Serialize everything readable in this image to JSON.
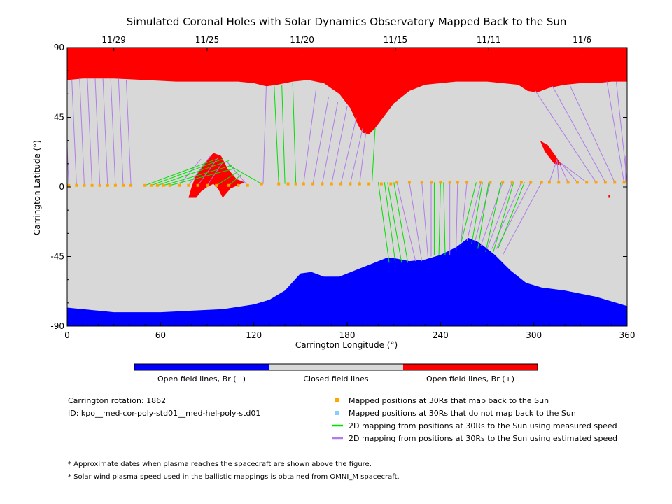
{
  "chart_data": {
    "type": "map",
    "title": "Simulated Coronal Holes with Solar Dynamics Observatory Mapped Back to the Sun",
    "xlabel": "Carrington Longitude (°)",
    "ylabel": "Carrington Latitude (°)",
    "xlim": [
      0,
      360
    ],
    "ylim": [
      -90,
      90
    ],
    "x_ticks": [
      "0",
      "60",
      "120",
      "180",
      "240",
      "300",
      "360"
    ],
    "y_ticks": [
      "90",
      "45",
      "0",
      "-45",
      "-90"
    ],
    "top_axis_dates": [
      {
        "label": "11/29",
        "lon": 30
      },
      {
        "label": "11/25",
        "lon": 90
      },
      {
        "label": "11/20",
        "lon": 151
      },
      {
        "label": "11/15",
        "lon": 211
      },
      {
        "label": "11/11",
        "lon": 271
      },
      {
        "label": "11/6",
        "lon": 331
      }
    ],
    "colors": {
      "open_negative": "#0000ff",
      "closed": "#d8d8d8",
      "open_positive": "#ff0000",
      "mapped_point": "#ffa500",
      "unmapped_point": "#87cefa",
      "measured_speed_line": "#00e000",
      "estimated_speed_line": "#b07de8"
    },
    "north_boundary": [
      [
        0,
        69
      ],
      [
        10,
        70
      ],
      [
        20,
        70
      ],
      [
        30,
        70
      ],
      [
        40,
        69.5
      ],
      [
        50,
        69
      ],
      [
        60,
        68.5
      ],
      [
        70,
        68
      ],
      [
        80,
        68
      ],
      [
        90,
        68
      ],
      [
        100,
        68
      ],
      [
        110,
        68
      ],
      [
        120,
        67
      ],
      [
        128,
        65
      ],
      [
        135,
        66
      ],
      [
        145,
        68
      ],
      [
        155,
        69
      ],
      [
        165,
        67
      ],
      [
        175,
        60
      ],
      [
        182,
        51
      ],
      [
        187,
        40
      ],
      [
        190,
        35
      ],
      [
        194,
        34
      ],
      [
        198,
        38
      ],
      [
        204,
        46
      ],
      [
        210,
        54
      ],
      [
        220,
        62
      ],
      [
        230,
        66
      ],
      [
        240,
        67
      ],
      [
        250,
        68
      ],
      [
        260,
        68
      ],
      [
        270,
        68
      ],
      [
        280,
        67
      ],
      [
        290,
        66
      ],
      [
        296,
        62
      ],
      [
        302,
        61
      ],
      [
        310,
        64
      ],
      [
        320,
        66
      ],
      [
        330,
        67
      ],
      [
        340,
        67
      ],
      [
        350,
        68
      ],
      [
        360,
        68
      ]
    ],
    "south_boundary": [
      [
        0,
        -78
      ],
      [
        10,
        -79
      ],
      [
        20,
        -80
      ],
      [
        30,
        -81
      ],
      [
        40,
        -81
      ],
      [
        60,
        -81
      ],
      [
        80,
        -80
      ],
      [
        100,
        -79
      ],
      [
        120,
        -76
      ],
      [
        130,
        -73
      ],
      [
        140,
        -67
      ],
      [
        150,
        -56
      ],
      [
        157,
        -55
      ],
      [
        165,
        -58
      ],
      [
        175,
        -58
      ],
      [
        185,
        -54
      ],
      [
        195,
        -50
      ],
      [
        205,
        -46
      ],
      [
        210,
        -46
      ],
      [
        220,
        -48
      ],
      [
        230,
        -47
      ],
      [
        240,
        -44
      ],
      [
        250,
        -39
      ],
      [
        258,
        -33
      ],
      [
        265,
        -36
      ],
      [
        275,
        -44
      ],
      [
        285,
        -54
      ],
      [
        295,
        -62
      ],
      [
        305,
        -65
      ],
      [
        320,
        -67
      ],
      [
        340,
        -71
      ],
      [
        360,
        -77
      ]
    ],
    "positive_patches": [
      [
        [
          78,
          -7
        ],
        [
          80,
          0
        ],
        [
          83,
          8
        ],
        [
          88,
          15
        ],
        [
          94,
          22
        ],
        [
          99,
          20
        ],
        [
          103,
          12
        ],
        [
          109,
          5
        ],
        [
          114,
          3
        ],
        [
          105,
          -1
        ],
        [
          100,
          -7
        ],
        [
          97,
          -1
        ],
        [
          94,
          2
        ],
        [
          90,
          0
        ],
        [
          86,
          -3
        ],
        [
          83,
          -7
        ]
      ],
      [
        [
          304,
          30
        ],
        [
          307,
          23
        ],
        [
          313,
          15
        ],
        [
          318,
          14
        ],
        [
          314,
          20
        ],
        [
          309,
          27
        ]
      ],
      [
        [
          348,
          -5
        ],
        [
          349,
          -5
        ],
        [
          349,
          -7
        ],
        [
          348,
          -7
        ]
      ]
    ],
    "mapped_points": [
      [
        1,
        1
      ],
      [
        6,
        1
      ],
      [
        11,
        1
      ],
      [
        16,
        1
      ],
      [
        21,
        1
      ],
      [
        26,
        1
      ],
      [
        31,
        1
      ],
      [
        36,
        1
      ],
      [
        41,
        1
      ],
      [
        50,
        1
      ],
      [
        54,
        1
      ],
      [
        58,
        1
      ],
      [
        62,
        1
      ],
      [
        66,
        1
      ],
      [
        72,
        1
      ],
      [
        78,
        1
      ],
      [
        84,
        1
      ],
      [
        90,
        1
      ],
      [
        96,
        1
      ],
      [
        104,
        1
      ],
      [
        110,
        1
      ],
      [
        116,
        1
      ],
      [
        125,
        2
      ],
      [
        136,
        2
      ],
      [
        142,
        2
      ],
      [
        147,
        2
      ],
      [
        152,
        2
      ],
      [
        158,
        2
      ],
      [
        164,
        2
      ],
      [
        170,
        2
      ],
      [
        176,
        2
      ],
      [
        182,
        2
      ],
      [
        188,
        2
      ],
      [
        194,
        2
      ],
      [
        202,
        2
      ],
      [
        208,
        2
      ],
      [
        212,
        3
      ],
      [
        220,
        3
      ],
      [
        228,
        3
      ],
      [
        234,
        3
      ],
      [
        240,
        3
      ],
      [
        246,
        3
      ],
      [
        251,
        3
      ],
      [
        257,
        3
      ],
      [
        266,
        3
      ],
      [
        272,
        3
      ],
      [
        280,
        3
      ],
      [
        286,
        3
      ],
      [
        292,
        3
      ],
      [
        298,
        3
      ],
      [
        305,
        3
      ],
      [
        310,
        3
      ],
      [
        316,
        3
      ],
      [
        322,
        3
      ],
      [
        328,
        3
      ],
      [
        334,
        3
      ],
      [
        340,
        3
      ],
      [
        346,
        3
      ],
      [
        352,
        3
      ],
      [
        358,
        3
      ]
    ],
    "measured_lines": [
      [
        [
          50,
          1
        ],
        [
          96,
          18
        ]
      ],
      [
        [
          54,
          1
        ],
        [
          100,
          18
        ]
      ],
      [
        [
          58,
          1
        ],
        [
          104,
          17
        ]
      ],
      [
        [
          62,
          1
        ],
        [
          106,
          14
        ]
      ],
      [
        [
          66,
          1
        ],
        [
          108,
          12
        ]
      ],
      [
        [
          96,
          1
        ],
        [
          110,
          10
        ]
      ],
      [
        [
          104,
          1
        ],
        [
          112,
          8
        ]
      ],
      [
        [
          125,
          2
        ],
        [
          104,
          14
        ]
      ],
      [
        [
          136,
          2
        ],
        [
          133,
          67
        ]
      ],
      [
        [
          140,
          2
        ],
        [
          138,
          66
        ]
      ],
      [
        [
          147,
          2
        ],
        [
          145,
          67
        ]
      ],
      [
        [
          196,
          3
        ],
        [
          198,
          38
        ]
      ],
      [
        [
          200,
          3
        ],
        [
          207,
          -49
        ]
      ],
      [
        [
          204,
          3
        ],
        [
          211,
          -49
        ]
      ],
      [
        [
          206,
          3
        ],
        [
          215,
          -49
        ]
      ],
      [
        [
          210,
          3
        ],
        [
          219,
          -49
        ]
      ],
      [
        [
          236,
          3
        ],
        [
          236,
          -44
        ]
      ],
      [
        [
          240,
          3
        ],
        [
          239,
          -44
        ]
      ],
      [
        [
          242,
          3
        ],
        [
          243,
          -44
        ]
      ],
      [
        [
          263,
          3
        ],
        [
          253,
          -37
        ]
      ],
      [
        [
          267,
          3
        ],
        [
          260,
          -37
        ]
      ],
      [
        [
          271,
          3
        ],
        [
          264,
          -40
        ]
      ],
      [
        [
          279,
          3
        ],
        [
          269,
          -42
        ]
      ],
      [
        [
          287,
          3
        ],
        [
          274,
          -42
        ]
      ],
      [
        [
          294,
          3
        ],
        [
          277,
          -40
        ]
      ]
    ],
    "estimated_lines": [
      [
        [
          1,
          1
        ],
        [
          0,
          26
        ]
      ],
      [
        [
          6,
          1
        ],
        [
          3,
          69
        ]
      ],
      [
        [
          11,
          1
        ],
        [
          8,
          70
        ]
      ],
      [
        [
          16,
          1
        ],
        [
          13,
          70
        ]
      ],
      [
        [
          21,
          1
        ],
        [
          18,
          70
        ]
      ],
      [
        [
          26,
          1
        ],
        [
          23,
          70
        ]
      ],
      [
        [
          31,
          1
        ],
        [
          28,
          70
        ]
      ],
      [
        [
          36,
          1
        ],
        [
          33,
          70
        ]
      ],
      [
        [
          41,
          1
        ],
        [
          38,
          69
        ]
      ],
      [
        [
          72,
          1
        ],
        [
          86,
          18
        ]
      ],
      [
        [
          78,
          1
        ],
        [
          92,
          20
        ]
      ],
      [
        [
          84,
          1
        ],
        [
          97,
          19
        ]
      ],
      [
        [
          90,
          1
        ],
        [
          100,
          16
        ]
      ],
      [
        [
          116,
          1
        ],
        [
          103,
          16
        ]
      ],
      [
        [
          126,
          2
        ],
        [
          128,
          65
        ]
      ],
      [
        [
          152,
          2
        ],
        [
          160,
          63
        ]
      ],
      [
        [
          158,
          2
        ],
        [
          168,
          58
        ]
      ],
      [
        [
          164,
          2
        ],
        [
          174,
          55
        ]
      ],
      [
        [
          170,
          2
        ],
        [
          180,
          52
        ]
      ],
      [
        [
          176,
          2
        ],
        [
          186,
          45
        ]
      ],
      [
        [
          182,
          2
        ],
        [
          190,
          38
        ]
      ],
      [
        [
          188,
          2
        ],
        [
          192,
          35
        ]
      ],
      [
        [
          212,
          3
        ],
        [
          224,
          -48
        ]
      ],
      [
        [
          220,
          3
        ],
        [
          228,
          -48
        ]
      ],
      [
        [
          228,
          3
        ],
        [
          232,
          -46
        ]
      ],
      [
        [
          234,
          3
        ],
        [
          234,
          -45
        ]
      ],
      [
        [
          246,
          3
        ],
        [
          246,
          -44
        ]
      ],
      [
        [
          251,
          3
        ],
        [
          250,
          -42
        ]
      ],
      [
        [
          257,
          3
        ],
        [
          253,
          -38
        ]
      ],
      [
        [
          266,
          3
        ],
        [
          257,
          -35
        ]
      ],
      [
        [
          272,
          3
        ],
        [
          262,
          -36
        ]
      ],
      [
        [
          280,
          3
        ],
        [
          266,
          -38
        ]
      ],
      [
        [
          286,
          3
        ],
        [
          270,
          -40
        ]
      ],
      [
        [
          292,
          3
        ],
        [
          273,
          -40
        ]
      ],
      [
        [
          298,
          3
        ],
        [
          276,
          -40
        ]
      ],
      [
        [
          305,
          3
        ],
        [
          280,
          -44
        ]
      ],
      [
        [
          310,
          3
        ],
        [
          315,
          18
        ]
      ],
      [
        [
          316,
          3
        ],
        [
          315,
          17
        ]
      ],
      [
        [
          322,
          3
        ],
        [
          316,
          16
        ]
      ],
      [
        [
          328,
          3
        ],
        [
          317,
          16
        ]
      ],
      [
        [
          334,
          3
        ],
        [
          318,
          15
        ]
      ],
      [
        [
          340,
          3
        ],
        [
          301,
          62
        ]
      ],
      [
        [
          346,
          3
        ],
        [
          312,
          65
        ]
      ],
      [
        [
          352,
          3
        ],
        [
          323,
          66
        ]
      ],
      [
        [
          358,
          3
        ],
        [
          347,
          68
        ]
      ],
      [
        [
          360,
          3
        ],
        [
          353,
          68
        ]
      ],
      [
        [
          359,
          3
        ],
        [
          359,
          20
        ]
      ]
    ]
  },
  "colorbar": {
    "labels": [
      "Open field lines, Br (−)",
      "Closed field lines",
      "Open field lines, Br (+)"
    ]
  },
  "info": {
    "rotation": "Carrington rotation: 1862",
    "id": "ID: kpo__med-cor-poly-std01__med-hel-poly-std01"
  },
  "legend": [
    {
      "kind": "square",
      "color": "#ffa500",
      "label": "Mapped positions at 30Rs that map back to the Sun"
    },
    {
      "kind": "square",
      "color": "#87cefa",
      "label": "Mapped positions at 30Rs that do not map back to the Sun"
    },
    {
      "kind": "line",
      "color": "#00e000",
      "label": "2D mapping from positions at 30Rs to the Sun using measured speed"
    },
    {
      "kind": "line",
      "color": "#b07de8",
      "label": "2D mapping from positions at 30Rs to the Sun using estimated speed"
    }
  ],
  "notes": [
    "* Approximate dates when plasma reaches the spacecraft are shown above the figure.",
    "* Solar wind plasma speed used in the ballistic mappings is obtained from OMNI_M spacecraft."
  ]
}
